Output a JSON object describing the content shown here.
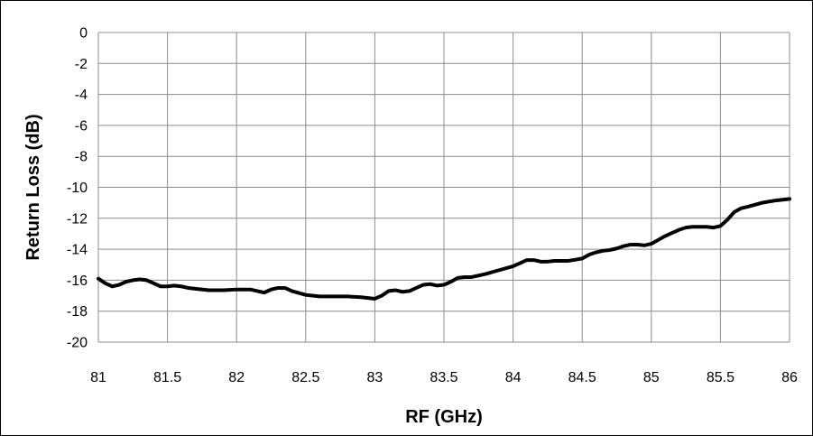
{
  "chart_data": {
    "type": "line",
    "title": "",
    "xlabel": "RF (GHz)",
    "ylabel": "Return Loss (dB)",
    "xlim": [
      81,
      86
    ],
    "ylim": [
      -20,
      0
    ],
    "xticks": [
      81,
      81.5,
      82,
      82.5,
      83,
      83.5,
      84,
      84.5,
      85,
      85.5,
      86
    ],
    "xtick_labels": [
      "81",
      "81.5",
      "82",
      "82.5",
      "83",
      "83.5",
      "84",
      "84.5",
      "85",
      "85.5",
      "86"
    ],
    "yticks": [
      0,
      -2,
      -4,
      -6,
      -8,
      -10,
      -12,
      -14,
      -16,
      -18,
      -20
    ],
    "ytick_labels": [
      "0",
      "-2",
      "-4",
      "-6",
      "-8",
      "-10",
      "-12",
      "-14",
      "-16",
      "-18",
      "-20"
    ],
    "grid": true,
    "legend": "none",
    "line_color": "#000000",
    "series": [
      {
        "x": [
          81.0,
          81.05,
          81.1,
          81.15,
          81.2,
          81.25,
          81.3,
          81.35,
          81.4,
          81.45,
          81.5,
          81.55,
          81.6,
          81.65,
          81.7,
          81.8,
          81.9,
          82.0,
          82.1,
          82.15,
          82.2,
          82.25,
          82.3,
          82.35,
          82.4,
          82.5,
          82.6,
          82.7,
          82.8,
          82.9,
          83.0,
          83.05,
          83.1,
          83.15,
          83.2,
          83.25,
          83.3,
          83.35,
          83.4,
          83.45,
          83.5,
          83.55,
          83.6,
          83.65,
          83.7,
          83.8,
          83.9,
          84.0,
          84.05,
          84.1,
          84.15,
          84.2,
          84.25,
          84.3,
          84.4,
          84.5,
          84.55,
          84.6,
          84.65,
          84.7,
          84.75,
          84.8,
          84.85,
          84.9,
          84.95,
          85.0,
          85.05,
          85.1,
          85.15,
          85.2,
          85.25,
          85.3,
          85.35,
          85.4,
          85.45,
          85.5,
          85.55,
          85.6,
          85.65,
          85.7,
          85.8,
          85.9,
          86.0
        ],
        "y": [
          -15.9,
          -16.2,
          -16.4,
          -16.3,
          -16.1,
          -16.0,
          -15.95,
          -16.0,
          -16.2,
          -16.4,
          -16.4,
          -16.35,
          -16.4,
          -16.5,
          -16.55,
          -16.65,
          -16.65,
          -16.6,
          -16.6,
          -16.7,
          -16.8,
          -16.6,
          -16.5,
          -16.5,
          -16.7,
          -16.95,
          -17.05,
          -17.05,
          -17.05,
          -17.1,
          -17.2,
          -17.0,
          -16.7,
          -16.65,
          -16.75,
          -16.7,
          -16.5,
          -16.3,
          -16.25,
          -16.35,
          -16.3,
          -16.1,
          -15.85,
          -15.8,
          -15.8,
          -15.6,
          -15.35,
          -15.1,
          -14.9,
          -14.7,
          -14.7,
          -14.8,
          -14.8,
          -14.75,
          -14.75,
          -14.6,
          -14.35,
          -14.2,
          -14.1,
          -14.05,
          -13.95,
          -13.8,
          -13.7,
          -13.7,
          -13.75,
          -13.65,
          -13.4,
          -13.15,
          -12.95,
          -12.75,
          -12.6,
          -12.55,
          -12.55,
          -12.55,
          -12.6,
          -12.5,
          -12.1,
          -11.6,
          -11.35,
          -11.25,
          -11.0,
          -10.85,
          -10.75
        ]
      }
    ]
  }
}
